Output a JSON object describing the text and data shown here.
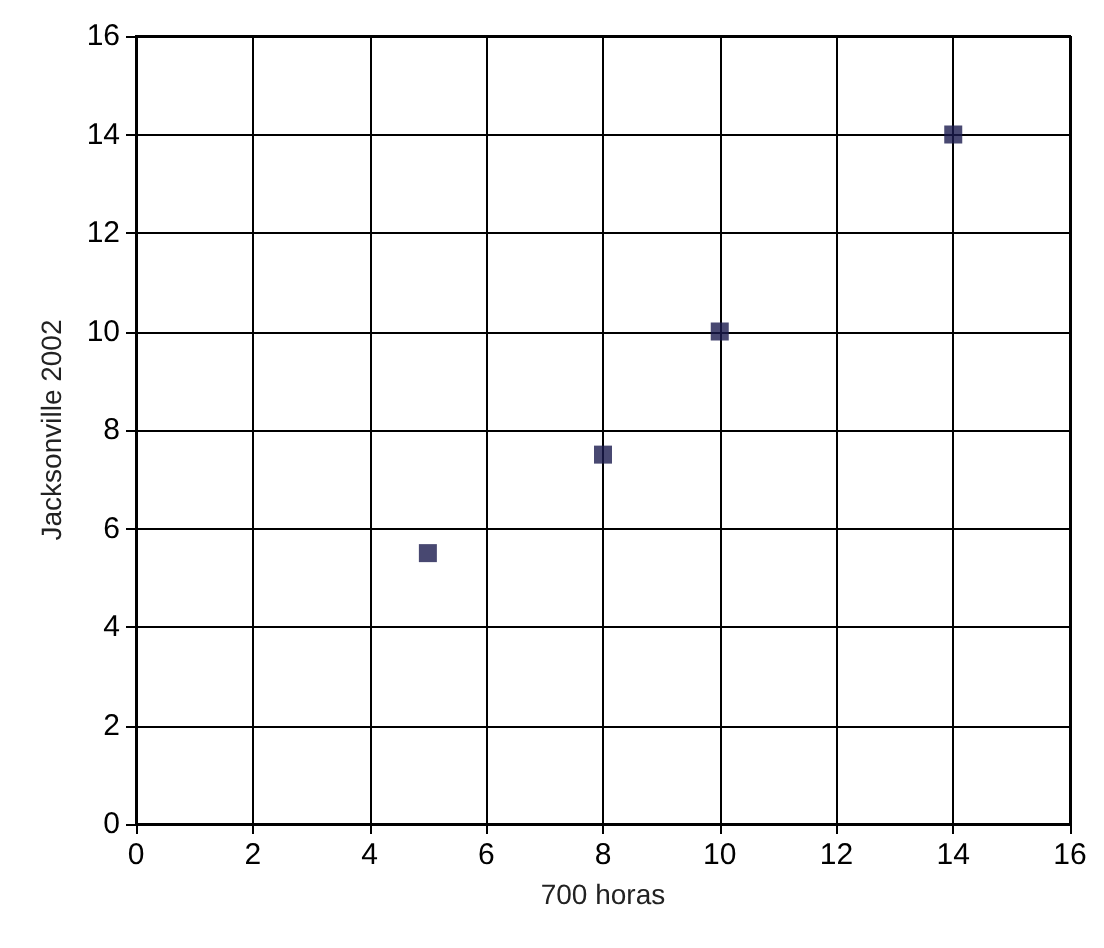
{
  "chart_data": {
    "type": "scatter",
    "xlabel": "700 horas",
    "ylabel": "Jacksonville 2002",
    "x": [
      5,
      8,
      10,
      14
    ],
    "values": [
      5.5,
      7.5,
      10,
      14
    ],
    "color": "#1a1a4e",
    "xlim": [
      0,
      16
    ],
    "xticks": [
      0,
      2,
      4,
      6,
      8,
      10,
      12,
      14,
      16
    ],
    "ylim": [
      0,
      16
    ],
    "yticks": [
      0,
      2,
      4,
      6,
      8,
      10,
      12,
      14,
      16
    ],
    "grid": true,
    "marker": "square"
  }
}
